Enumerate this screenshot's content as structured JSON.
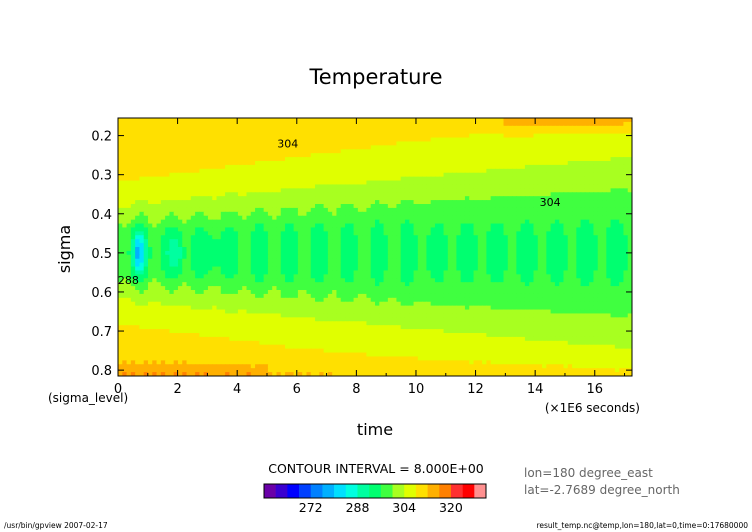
{
  "chart_data": {
    "type": "heatmap",
    "title": "Temperature",
    "xlabel": "time",
    "ylabel": "sigma",
    "x_sublabel": "(sigma_level)",
    "x_unit": "(×1E6 seconds)",
    "xlim": [
      0,
      17.25
    ],
    "ylim": [
      0.815,
      0.155
    ],
    "x_ticks": [
      0,
      2,
      4,
      6,
      8,
      10,
      12,
      14,
      16
    ],
    "y_ticks": [
      0.2,
      0.3,
      0.4,
      0.5,
      0.6,
      0.7,
      0.8
    ],
    "contour_interval_text": "CONTOUR INTERVAL = 8.000E+00",
    "contour_interval": 8.0,
    "contour_labels": [
      {
        "text": "304",
        "x": 5.7,
        "y": 0.23
      },
      {
        "text": "304",
        "x": 14.5,
        "y": 0.38
      },
      {
        "text": "288",
        "x": 0.35,
        "y": 0.58
      }
    ],
    "colorbar": {
      "boundaries": [
        256,
        260,
        264,
        268,
        272,
        276,
        280,
        284,
        288,
        292,
        296,
        300,
        304,
        308,
        312,
        316,
        320,
        324,
        328,
        332
      ],
      "colors": [
        "#6a00a8",
        "#3a00d0",
        "#0000ff",
        "#0040ff",
        "#0080ff",
        "#00b0ff",
        "#00e0ff",
        "#00ffe0",
        "#00ffa0",
        "#00ff70",
        "#40ff40",
        "#a8ff20",
        "#e0ff00",
        "#ffe000",
        "#ffb000",
        "#ff8000",
        "#ff3030",
        "#ff0000",
        "#ff9090"
      ],
      "tick_labels": [
        "272",
        "288",
        "304",
        "320"
      ]
    },
    "info": [
      "lon=180 degree_east",
      "lat=-2.7689 degree_north"
    ]
  },
  "footer": {
    "left": "/usr/bin/gpview  2007-02-17",
    "right": "result_temp.nc@temp,lon=180,lat=0,time=0:17680000"
  }
}
